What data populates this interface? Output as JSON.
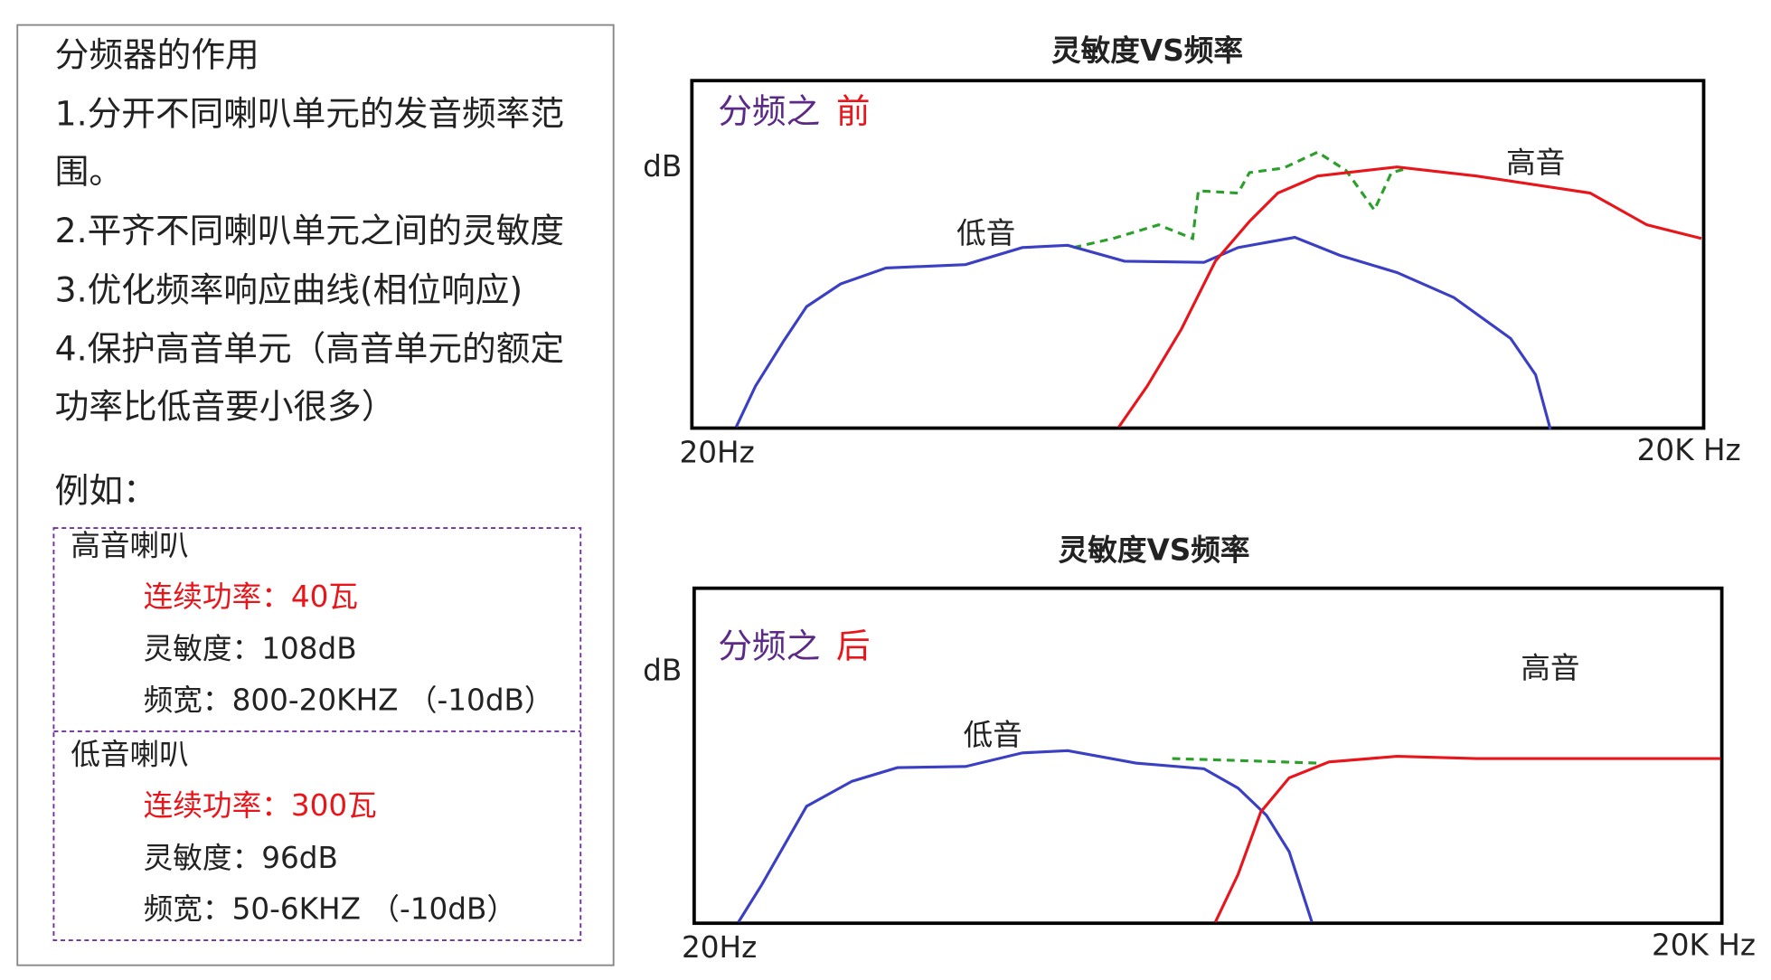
{
  "left_panel": {
    "lines": [
      "分频器的作用",
      "1.分开不同喇叭单元的发音频率范",
      "围。",
      "2.平齐不同喇叭单元之间的灵敏度",
      "3.优化频率响应曲线(相位响应)",
      "4.保护高音单元（高音单元的额定",
      "功率比低音要小很多）"
    ],
    "example_label": "例如：",
    "speakers": [
      {
        "name": "高音喇叭",
        "power": "连续功率：40瓦",
        "sensitivity": "灵敏度：108dB",
        "bandwidth": "频宽：800-20KHZ （-10dB）"
      },
      {
        "name": "低音喇叭",
        "power": "连续功率：300瓦",
        "sensitivity": "灵敏度：96dB",
        "bandwidth": "频宽：50-6KHZ （-10dB）"
      }
    ]
  },
  "graphs": [
    {
      "title": "灵敏度VS频率",
      "y_label": "dB",
      "stage_prefix": "分频之",
      "stage": "前",
      "x_start": "20Hz",
      "x_end": "20K Hz",
      "tweeter_label": "高音",
      "woofer_label": "低音"
    },
    {
      "title": "灵敏度VS频率",
      "y_label": "dB",
      "stage_prefix": "分频之",
      "stage": "后",
      "x_start": "20Hz",
      "x_end": "20K Hz",
      "tweeter_label": "高音",
      "woofer_label": "低音"
    }
  ]
}
